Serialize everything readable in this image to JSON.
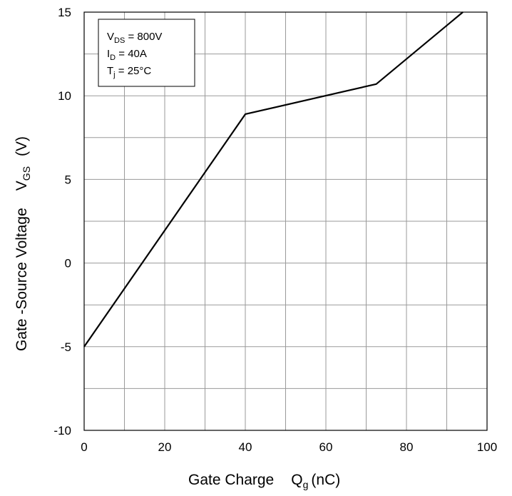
{
  "chart_data": {
    "type": "line",
    "xlabel_main": "Gate Charge",
    "xlabel_symbol": "Q",
    "xlabel_sub": "g",
    "xlabel_unit": "(nC)",
    "ylabel_main": "Gate -Source Voltage",
    "ylabel_symbol": "V",
    "ylabel_sub": "GS",
    "ylabel_unit": "(V)",
    "xlim": [
      0,
      100
    ],
    "ylim": [
      -10,
      15
    ],
    "xticks": [
      0,
      20,
      40,
      60,
      80,
      100
    ],
    "yticks": [
      -10,
      -5,
      0,
      5,
      10,
      15
    ],
    "xtick_labels": [
      "0",
      "20",
      "40",
      "60",
      "80",
      "100"
    ],
    "ytick_labels": [
      "-10",
      "-5",
      "0",
      "5",
      "10",
      "15"
    ],
    "grid": true,
    "grid_x_step": 10,
    "grid_y_step": 2.5,
    "line_color": "#000000",
    "series": [
      {
        "x": [
          0,
          40,
          72.5,
          94
        ],
        "y": [
          -5,
          8.9,
          10.7,
          15
        ]
      }
    ],
    "conditions": [
      {
        "symbol": "V",
        "sub": "DS",
        "text": " = 800V"
      },
      {
        "symbol": "I",
        "sub": "D",
        "text": " = 40A"
      },
      {
        "symbol": "T",
        "sub": "j",
        "text": " = 25°C"
      }
    ],
    "legend_position": "top-left"
  }
}
